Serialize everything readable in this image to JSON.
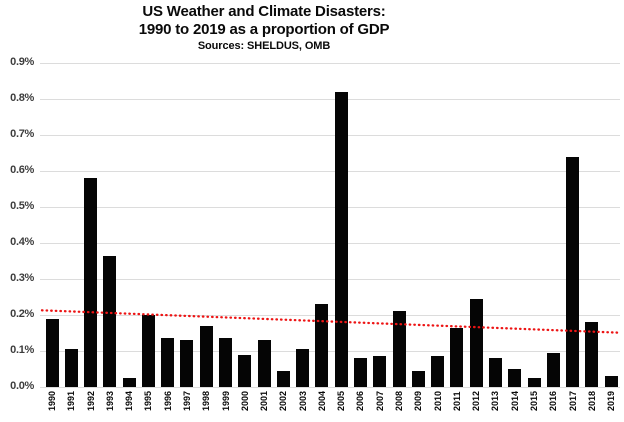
{
  "title": {
    "line1": "US Weather and Climate Disasters:",
    "line2": "1990 to 2019 as a proportion of GDP",
    "sources": "Sources: SHELDUS, OMB"
  },
  "chart_data": {
    "type": "bar",
    "title": "US Weather and Climate Disasters: 1990 to 2019 as a proportion of GDP",
    "subtitle": "Sources: SHELDUS, OMB",
    "xlabel": "",
    "ylabel": "",
    "unit": "% of GDP",
    "categories": [
      "1990",
      "1991",
      "1992",
      "1993",
      "1994",
      "1995",
      "1996",
      "1997",
      "1998",
      "1999",
      "2000",
      "2001",
      "2002",
      "2003",
      "2004",
      "2005",
      "2006",
      "2007",
      "2008",
      "2009",
      "2010",
      "2011",
      "2012",
      "2013",
      "2014",
      "2015",
      "2016",
      "2017",
      "2018",
      "2019"
    ],
    "values": [
      0.19,
      0.105,
      0.58,
      0.365,
      0.025,
      0.2,
      0.135,
      0.13,
      0.17,
      0.135,
      0.09,
      0.13,
      0.045,
      0.105,
      0.23,
      0.82,
      0.08,
      0.085,
      0.21,
      0.045,
      0.085,
      0.165,
      0.245,
      0.08,
      0.05,
      0.025,
      0.095,
      0.64,
      0.18,
      0.03
    ],
    "ylim": [
      0,
      0.9
    ],
    "ytick_step": 0.1,
    "ytick_labels": [
      "0.0%",
      "0.1%",
      "0.2%",
      "0.3%",
      "0.4%",
      "0.5%",
      "0.6%",
      "0.7%",
      "0.8%",
      "0.9%"
    ],
    "grid": true,
    "legend": "none",
    "bar_color": "#050505",
    "gridline_color": "#dcdcdc",
    "trendline": {
      "style": "dotted",
      "color": "#ed1414",
      "start_value": 0.213,
      "end_value": 0.151
    }
  }
}
